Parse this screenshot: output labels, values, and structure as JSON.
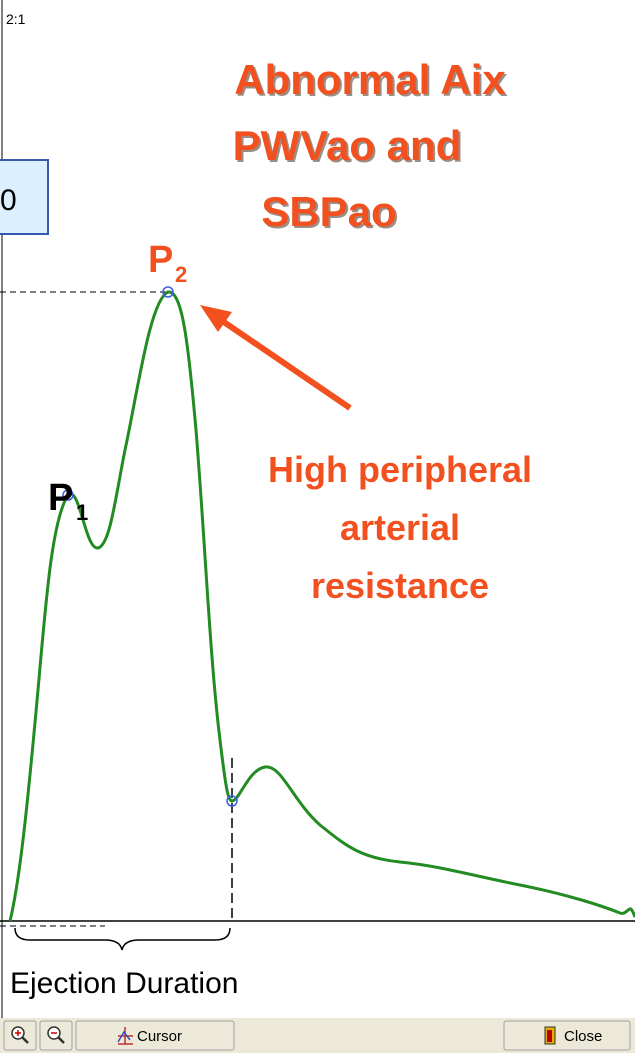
{
  "ratio": "2:1",
  "title": [
    "Abnormal Aix",
    "PWVao and",
    "SBPao"
  ],
  "value_box": "0",
  "markers": {
    "p1": {
      "letter": "P",
      "sub": "1"
    },
    "p2": {
      "letter": "P",
      "sub": "2"
    }
  },
  "note": [
    "High peripheral",
    "arterial",
    "resistance"
  ],
  "duration_label": "Ejection Duration",
  "toolbar": {
    "cursor": "Cursor",
    "close": "Close"
  }
}
